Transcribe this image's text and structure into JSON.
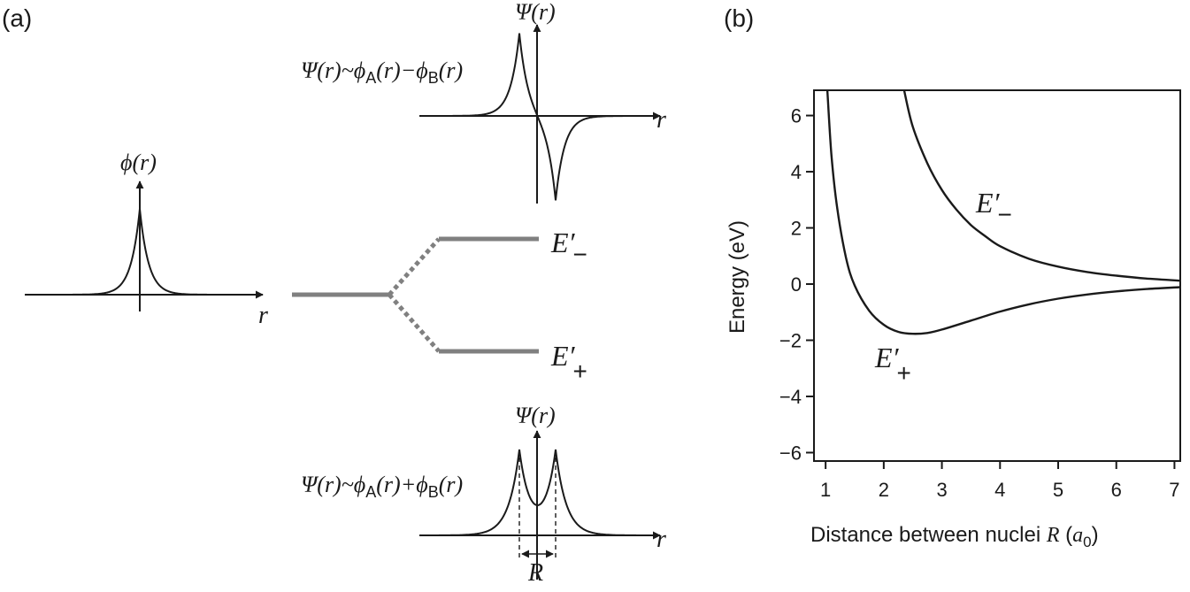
{
  "panel_a": {
    "label": "(a)",
    "atomic_wavefunction": {
      "label": "ϕ(r)",
      "axis_label": "r"
    },
    "antibonding_wavefunction": {
      "axis_y_label": "Ψ(r)",
      "axis_x_label": "r",
      "equation": "Ψ(r)~ϕA(r)−ϕB(r)"
    },
    "bonding_wavefunction": {
      "axis_y_label": "Ψ(r)",
      "axis_x_label": "r",
      "equation": "Ψ(r)~ϕA(r)+ϕB(r)",
      "separation_label": "R"
    },
    "levels": {
      "upper": "E′−",
      "lower": "E′+"
    },
    "colors": {
      "curve": "#1a1a1a",
      "level": "#808080"
    }
  },
  "chart_data": {
    "type": "line",
    "panel_label": "(b)",
    "xlabel": "Distance between nuclei R (a0)",
    "ylabel": "Energy (eV)",
    "xlim": [
      0.8,
      7.1
    ],
    "ylim": [
      -6.3,
      6.9
    ],
    "xticks": [
      1,
      2,
      3,
      4,
      5,
      6,
      7
    ],
    "yticks": [
      6,
      4,
      2,
      0,
      -2,
      -4,
      -6
    ],
    "ytick_labels": [
      "6",
      "4",
      "2",
      "0",
      "−2",
      "−4",
      "−6"
    ],
    "grid": false,
    "series": [
      {
        "name": "E′−",
        "x": [
          2.35,
          2.5,
          2.75,
          3.0,
          3.25,
          3.5,
          3.75,
          4.0,
          4.5,
          5.0,
          5.5,
          6.0,
          6.5,
          7.1
        ],
        "y": [
          6.9,
          5.6,
          4.3,
          3.35,
          2.65,
          2.1,
          1.7,
          1.35,
          0.9,
          0.62,
          0.43,
          0.3,
          0.2,
          0.12
        ]
      },
      {
        "name": "E′+",
        "x": [
          1.03,
          1.1,
          1.2,
          1.35,
          1.5,
          1.75,
          2.0,
          2.25,
          2.5,
          2.75,
          3.0,
          3.5,
          4.0,
          4.5,
          5.0,
          5.5,
          6.0,
          6.5,
          7.1
        ],
        "y": [
          6.9,
          4.6,
          2.7,
          0.95,
          -0.05,
          -0.95,
          -1.45,
          -1.7,
          -1.77,
          -1.74,
          -1.62,
          -1.3,
          -0.98,
          -0.72,
          -0.52,
          -0.37,
          -0.26,
          -0.18,
          -0.11
        ]
      }
    ],
    "annotations": {
      "upper": "E′−",
      "lower": "E′+"
    }
  }
}
